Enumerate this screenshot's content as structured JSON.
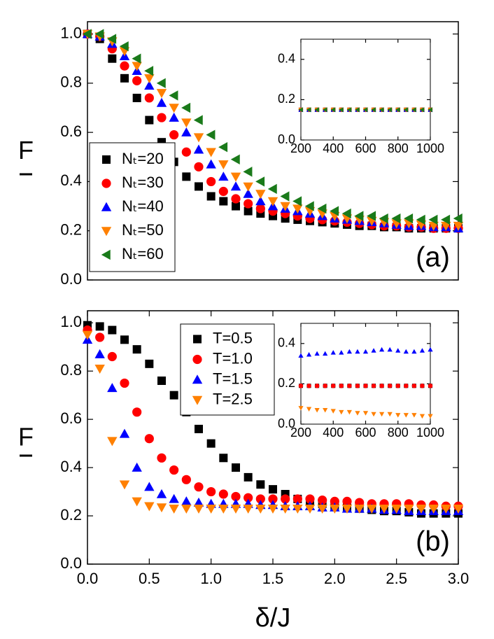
{
  "chart_data": [
    {
      "type": "scatter",
      "ylabel": "F",
      "annotation": "(a)",
      "legend": "lower left",
      "x": [
        0,
        0.1,
        0.2,
        0.3,
        0.4,
        0.5,
        0.6,
        0.7,
        0.8,
        0.9,
        1.0,
        1.1,
        1.2,
        1.3,
        1.4,
        1.5,
        1.6,
        1.7,
        1.8,
        1.9,
        2.0,
        2.1,
        2.2,
        2.3,
        2.4,
        2.5,
        2.6,
        2.7,
        2.8,
        2.9,
        3.0
      ],
      "xlim": [
        0,
        3
      ],
      "ylim": [
        0,
        1.05
      ],
      "yticks": [
        {
          "value": 0,
          "label": "0.0"
        },
        {
          "value": 0.2,
          "label": "0.2"
        },
        {
          "value": 0.4,
          "label": "0.4"
        },
        {
          "value": 0.6,
          "label": "0.6"
        },
        {
          "value": 0.8,
          "label": "0.8"
        },
        {
          "value": 1,
          "label": "1.0"
        }
      ],
      "series": [
        {
          "name": "Nₜ=20",
          "color": "#000000",
          "marker": "square",
          "values": [
            1.0,
            0.98,
            0.9,
            0.82,
            0.74,
            0.65,
            0.56,
            0.48,
            0.42,
            0.38,
            0.34,
            0.32,
            0.3,
            0.28,
            0.27,
            0.26,
            0.25,
            0.245,
            0.24,
            0.235,
            0.23,
            0.225,
            0.22,
            0.22,
            0.215,
            0.215,
            0.21,
            0.21,
            0.21,
            0.21,
            0.21
          ]
        },
        {
          "name": "Nₜ=30",
          "color": "#ff0000",
          "marker": "circle",
          "values": [
            1.0,
            0.99,
            0.94,
            0.87,
            0.81,
            0.74,
            0.66,
            0.59,
            0.52,
            0.46,
            0.4,
            0.36,
            0.33,
            0.31,
            0.29,
            0.28,
            0.27,
            0.26,
            0.25,
            0.245,
            0.24,
            0.235,
            0.23,
            0.225,
            0.22,
            0.22,
            0.215,
            0.215,
            0.21,
            0.21,
            0.21
          ]
        },
        {
          "name": "Nₜ=40",
          "color": "#0000ff",
          "marker": "triangle-up",
          "values": [
            1.0,
            0.99,
            0.96,
            0.91,
            0.85,
            0.79,
            0.72,
            0.66,
            0.6,
            0.53,
            0.47,
            0.42,
            0.38,
            0.35,
            0.32,
            0.3,
            0.29,
            0.28,
            0.27,
            0.26,
            0.25,
            0.245,
            0.24,
            0.235,
            0.23,
            0.225,
            0.22,
            0.22,
            0.215,
            0.215,
            0.21
          ]
        },
        {
          "name": "Nₜ=50",
          "color": "#ff8000",
          "marker": "triangle-down",
          "values": [
            1.0,
            0.99,
            0.97,
            0.93,
            0.87,
            0.82,
            0.76,
            0.7,
            0.64,
            0.58,
            0.52,
            0.47,
            0.42,
            0.38,
            0.35,
            0.32,
            0.3,
            0.29,
            0.28,
            0.27,
            0.26,
            0.25,
            0.245,
            0.24,
            0.235,
            0.23,
            0.23,
            0.225,
            0.22,
            0.22,
            0.22
          ]
        },
        {
          "name": "Nₜ=60",
          "color": "#1a7a1a",
          "marker": "triangle-left",
          "values": [
            1.0,
            1.0,
            0.98,
            0.95,
            0.9,
            0.85,
            0.8,
            0.75,
            0.7,
            0.65,
            0.59,
            0.54,
            0.49,
            0.44,
            0.4,
            0.37,
            0.34,
            0.32,
            0.3,
            0.29,
            0.28,
            0.27,
            0.26,
            0.26,
            0.25,
            0.25,
            0.25,
            0.245,
            0.245,
            0.245,
            0.25
          ]
        }
      ]
    },
    {
      "type": "scatter",
      "x": [
        200,
        250,
        300,
        350,
        400,
        450,
        500,
        550,
        600,
        650,
        700,
        750,
        800,
        850,
        900,
        950,
        1000
      ],
      "xlim": [
        200,
        1000
      ],
      "ylim": [
        0,
        0.5
      ],
      "xticks": [
        200,
        400,
        600,
        800,
        1000
      ],
      "yticks": [
        {
          "value": 0,
          "label": "0.0"
        },
        {
          "value": 0.2,
          "label": "0.2"
        },
        {
          "value": 0.4,
          "label": "0.4"
        }
      ],
      "series": [
        {
          "color": "#000000",
          "marker": "square",
          "values": [
            0.15,
            0.15,
            0.15,
            0.15,
            0.15,
            0.15,
            0.15,
            0.15,
            0.15,
            0.15,
            0.15,
            0.15,
            0.15,
            0.15,
            0.15,
            0.15,
            0.15
          ]
        },
        {
          "color": "#ff0000",
          "marker": "circle",
          "values": [
            0.15,
            0.15,
            0.15,
            0.15,
            0.15,
            0.15,
            0.15,
            0.15,
            0.15,
            0.15,
            0.15,
            0.15,
            0.15,
            0.15,
            0.15,
            0.15,
            0.15
          ]
        },
        {
          "color": "#0000ff",
          "marker": "triangle-up",
          "values": [
            0.15,
            0.15,
            0.15,
            0.15,
            0.15,
            0.15,
            0.15,
            0.15,
            0.15,
            0.15,
            0.15,
            0.15,
            0.15,
            0.15,
            0.15,
            0.15,
            0.15
          ]
        },
        {
          "color": "#ff8000",
          "marker": "triangle-down",
          "values": [
            0.15,
            0.15,
            0.15,
            0.15,
            0.15,
            0.15,
            0.15,
            0.15,
            0.15,
            0.15,
            0.15,
            0.15,
            0.15,
            0.15,
            0.15,
            0.15,
            0.15
          ]
        },
        {
          "color": "#1a7a1a",
          "marker": "triangle-left",
          "values": [
            0.15,
            0.15,
            0.15,
            0.15,
            0.15,
            0.15,
            0.15,
            0.15,
            0.15,
            0.15,
            0.15,
            0.15,
            0.15,
            0.15,
            0.15,
            0.15,
            0.15
          ]
        }
      ]
    },
    {
      "type": "scatter",
      "xlabel": "δ/J",
      "ylabel": "F",
      "annotation": "(b)",
      "legend": "upper center",
      "x": [
        0,
        0.1,
        0.2,
        0.3,
        0.4,
        0.5,
        0.6,
        0.7,
        0.8,
        0.9,
        1.0,
        1.1,
        1.2,
        1.3,
        1.4,
        1.5,
        1.6,
        1.7,
        1.8,
        1.9,
        2.0,
        2.1,
        2.2,
        2.3,
        2.4,
        2.5,
        2.6,
        2.7,
        2.8,
        2.9,
        3.0
      ],
      "xlim": [
        0,
        3
      ],
      "ylim": [
        0,
        1.05
      ],
      "xticks": [
        {
          "value": 0,
          "label": "0.0"
        },
        {
          "value": 0.5,
          "label": "0.5"
        },
        {
          "value": 1,
          "label": "1.0"
        },
        {
          "value": 1.5,
          "label": "1.5"
        },
        {
          "value": 2,
          "label": "2.0"
        },
        {
          "value": 2.5,
          "label": "2.5"
        },
        {
          "value": 3,
          "label": "3.0"
        }
      ],
      "yticks": [
        {
          "value": 0,
          "label": "0.0"
        },
        {
          "value": 0.2,
          "label": "0.2"
        },
        {
          "value": 0.4,
          "label": "0.4"
        },
        {
          "value": 0.6,
          "label": "0.6"
        },
        {
          "value": 0.8,
          "label": "0.8"
        },
        {
          "value": 1,
          "label": "1.0"
        }
      ],
      "series": [
        {
          "name": "T=0.5",
          "color": "#000000",
          "marker": "square",
          "values": [
            0.99,
            0.985,
            0.97,
            0.93,
            0.89,
            0.83,
            0.76,
            0.7,
            0.63,
            0.56,
            0.5,
            0.44,
            0.4,
            0.36,
            0.33,
            0.31,
            0.29,
            0.27,
            0.26,
            0.25,
            0.24,
            0.235,
            0.23,
            0.225,
            0.22,
            0.22,
            0.215,
            0.21,
            0.21,
            0.21,
            0.21
          ]
        },
        {
          "name": "T=1.0",
          "color": "#ff0000",
          "marker": "circle",
          "values": [
            0.97,
            0.94,
            0.86,
            0.75,
            0.63,
            0.52,
            0.44,
            0.39,
            0.35,
            0.32,
            0.3,
            0.29,
            0.28,
            0.275,
            0.27,
            0.27,
            0.27,
            0.27,
            0.27,
            0.265,
            0.26,
            0.26,
            0.255,
            0.25,
            0.25,
            0.25,
            0.25,
            0.245,
            0.245,
            0.24,
            0.24
          ]
        },
        {
          "name": "T=1.5",
          "color": "#0000ff",
          "marker": "triangle-up",
          "values": [
            0.93,
            0.87,
            0.73,
            0.54,
            0.4,
            0.32,
            0.29,
            0.27,
            0.26,
            0.255,
            0.25,
            0.25,
            0.25,
            0.25,
            0.245,
            0.245,
            0.24,
            0.24,
            0.24,
            0.235,
            0.235,
            0.23,
            0.23,
            0.23,
            0.225,
            0.225,
            0.22,
            0.22,
            0.22,
            0.22,
            0.22
          ]
        },
        {
          "name": "T=2.5",
          "color": "#ff8000",
          "marker": "triangle-down",
          "values": [
            0.95,
            0.81,
            0.51,
            0.33,
            0.26,
            0.24,
            0.235,
            0.23,
            0.23,
            0.23,
            0.23,
            0.23,
            0.23,
            0.23,
            0.23,
            0.23,
            0.23,
            0.23,
            0.23,
            0.23,
            0.23,
            0.23,
            0.23,
            0.23,
            0.23,
            0.23,
            0.23,
            0.23,
            0.23,
            0.23,
            0.23
          ]
        }
      ]
    },
    {
      "type": "scatter",
      "x": [
        200,
        250,
        300,
        350,
        400,
        450,
        500,
        550,
        600,
        650,
        700,
        750,
        800,
        850,
        900,
        950,
        1000
      ],
      "xlim": [
        200,
        1000
      ],
      "ylim": [
        0,
        0.5
      ],
      "xticks": [
        200,
        400,
        600,
        800,
        1000
      ],
      "yticks": [
        {
          "value": 0,
          "label": "0.0"
        },
        {
          "value": 0.2,
          "label": "0.2"
        },
        {
          "value": 0.4,
          "label": "0.4"
        }
      ],
      "series": [
        {
          "color": "#000000",
          "marker": "square",
          "values": [
            0.19,
            0.19,
            0.19,
            0.19,
            0.19,
            0.19,
            0.19,
            0.19,
            0.19,
            0.19,
            0.19,
            0.19,
            0.19,
            0.19,
            0.19,
            0.19,
            0.19
          ]
        },
        {
          "color": "#ff0000",
          "marker": "circle",
          "values": [
            0.19,
            0.19,
            0.19,
            0.19,
            0.19,
            0.19,
            0.19,
            0.19,
            0.19,
            0.19,
            0.19,
            0.19,
            0.19,
            0.19,
            0.19,
            0.19,
            0.19
          ]
        },
        {
          "color": "#0000ff",
          "marker": "triangle-up",
          "values": [
            0.34,
            0.345,
            0.35,
            0.35,
            0.355,
            0.355,
            0.36,
            0.36,
            0.36,
            0.365,
            0.37,
            0.37,
            0.365,
            0.36,
            0.36,
            0.365,
            0.37
          ]
        },
        {
          "color": "#ff8000",
          "marker": "triangle-down",
          "values": [
            0.08,
            0.075,
            0.07,
            0.07,
            0.065,
            0.06,
            0.06,
            0.055,
            0.055,
            0.05,
            0.05,
            0.05,
            0.045,
            0.045,
            0.045,
            0.04,
            0.04
          ]
        }
      ]
    }
  ]
}
